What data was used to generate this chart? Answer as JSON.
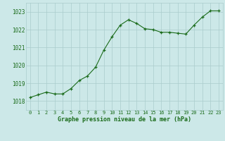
{
  "x": [
    0,
    1,
    2,
    3,
    4,
    5,
    6,
    7,
    8,
    9,
    10,
    11,
    12,
    13,
    14,
    15,
    16,
    17,
    18,
    19,
    20,
    21,
    22,
    23
  ],
  "y": [
    1018.2,
    1018.35,
    1018.5,
    1018.4,
    1018.4,
    1018.7,
    1019.15,
    1019.4,
    1019.9,
    1020.85,
    1021.6,
    1022.25,
    1022.55,
    1022.35,
    1022.05,
    1022.0,
    1021.85,
    1021.85,
    1021.8,
    1021.75,
    1022.25,
    1022.7,
    1023.05,
    1023.05
  ],
  "line_color": "#1a6b1a",
  "marker_color": "#1a6b1a",
  "bg_color": "#cce8e8",
  "grid_color": "#aacccc",
  "text_color": "#1a6b1a",
  "title": "Graphe pression niveau de la mer (hPa)",
  "xlim": [
    -0.5,
    23.5
  ],
  "ylim": [
    1017.5,
    1023.5
  ],
  "yticks": [
    1018,
    1019,
    1020,
    1021,
    1022,
    1023
  ],
  "xticks": [
    0,
    1,
    2,
    3,
    4,
    5,
    6,
    7,
    8,
    9,
    10,
    11,
    12,
    13,
    14,
    15,
    16,
    17,
    18,
    19,
    20,
    21,
    22,
    23
  ]
}
